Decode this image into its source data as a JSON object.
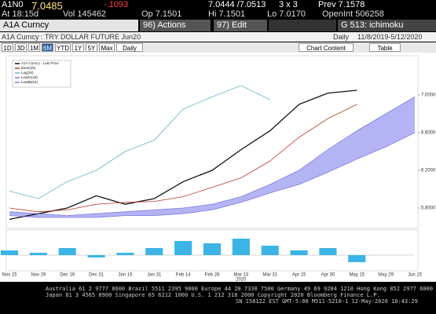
{
  "quote": {
    "ticker": "A1N0",
    "last": "7.0485",
    "change": "-.1093",
    "bid_ask": "7.0444 /7.0513",
    "size": "3 x 3",
    "prev": "Prev 7.1578",
    "time": "At 18:15d",
    "vol": "Vol 145462",
    "open": "Op 7.1501",
    "high": "Hi 7.1501",
    "low": "Lo 7.0170",
    "open_interest": "OpenInt 506258"
  },
  "bar": {
    "security": "A1A Curncy",
    "actions": "96) Actions",
    "edit": "97) Edit",
    "function": "G 513: ichimoku"
  },
  "subtitle": {
    "name": "A1A Curncy : TRY DOLLAR FUTURE Jun20",
    "period": "Daily",
    "range": "11/8/2019-5/12/2020"
  },
  "toolbar": {
    "buttons": [
      "1D",
      "3D",
      "1M",
      "6M",
      "YTD",
      "1Y",
      "5Y",
      "Max"
    ],
    "selected": "6M",
    "frequency": "Daily",
    "content": "Chart Content",
    "table": "Table"
  },
  "chart_data": {
    "type": "line",
    "categories": [
      "Nov 15",
      "Nov 29",
      "Dec 16",
      "Dec 31",
      "Jan 15",
      "Jan 31",
      "Feb 14",
      "Feb 28",
      "Mar 13",
      "Mar 31",
      "Apr 15",
      "Apr 30",
      "May 15",
      "May 29",
      "Jun 15"
    ],
    "x_annotation": "2020",
    "series": [
      {
        "name": "A1A Curncy - Last Price",
        "color": "#111111",
        "values": [
          5.68,
          5.74,
          5.8,
          5.93,
          5.84,
          5.9,
          6.08,
          6.2,
          6.42,
          6.62,
          6.9,
          7.02,
          7.05,
          null,
          null
        ]
      },
      {
        "name": "Base(26)",
        "color": "#c0392b",
        "values": [
          5.8,
          5.76,
          5.78,
          5.84,
          5.86,
          5.87,
          5.92,
          6.02,
          6.12,
          6.3,
          6.55,
          6.75,
          6.9,
          null,
          null
        ]
      },
      {
        "name": "Lag(26)",
        "color": "#5fb3c8",
        "values": [
          5.98,
          5.9,
          6.08,
          6.2,
          6.4,
          6.52,
          6.85,
          6.98,
          7.1,
          6.95,
          null,
          null,
          null,
          null,
          null
        ]
      },
      {
        "name": "LeadA(26)",
        "color": "#7b7be0",
        "values": [
          5.76,
          5.74,
          5.72,
          5.74,
          5.76,
          5.78,
          5.8,
          5.84,
          5.92,
          6.05,
          6.2,
          6.42,
          6.62,
          6.8,
          6.98
        ]
      },
      {
        "name": "LeadB(52)",
        "color": "#7b7be0",
        "values": [
          5.72,
          5.7,
          5.7,
          5.7,
          5.72,
          5.72,
          5.74,
          5.78,
          5.86,
          5.96,
          6.05,
          6.18,
          6.32,
          6.45,
          6.6
        ]
      }
    ],
    "ylim": [
      5.6,
      7.4
    ],
    "yticks": [
      {
        "value": 5.8,
        "label": "5.8000"
      },
      {
        "value": 6.2,
        "label": "6.2000"
      },
      {
        "value": 6.6,
        "label": "6.6000"
      },
      {
        "value": 7,
        "label": "7.0000"
      }
    ],
    "histogram": {
      "color": "#3cb4e6",
      "values": [
        0.02,
        0.01,
        0.03,
        -0.01,
        0.01,
        0.03,
        0.06,
        0.05,
        0.07,
        0.04,
        0.02,
        0.03,
        -0.03,
        null,
        null
      ],
      "ylim": [
        -0.06,
        0.1
      ]
    }
  },
  "footer": [
    "Australia 61 2 9777 8600 Brazil 5511 2395 9000 Europe 44 20 7330 7500 Germany 49 69 9204 1210 Hong Kong 852 2977 6000",
    "Japan 81 3 4565 8900 Singapore 65 6212 1000 U.S. 1 212 318 2000 Copyright 2020 Bloomberg Finance L.P.",
    "SN 158122 EST GMT-5:00 M511-5210-1 12-May-2020 18:43:29"
  ]
}
